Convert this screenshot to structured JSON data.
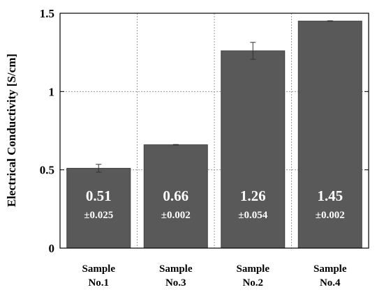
{
  "chart_data": {
    "type": "bar",
    "ylabel": "Electrical Conductivity [S/cm]",
    "xlabel": "",
    "ylim": [
      0,
      1.5
    ],
    "yticks": [
      0,
      0.5,
      1,
      1.5
    ],
    "ytick_labels": [
      "0",
      "0.5",
      "1",
      "1.5"
    ],
    "grid": true,
    "categories": [
      [
        "Sample",
        "No.1"
      ],
      [
        "Sample",
        "No.3"
      ],
      [
        "Sample",
        "No.2"
      ],
      [
        "Sample",
        "No.4"
      ]
    ],
    "values": [
      0.51,
      0.66,
      1.26,
      1.45
    ],
    "errors": [
      0.025,
      0.002,
      0.054,
      0.002
    ],
    "value_labels": [
      "0.51",
      "0.66",
      "1.26",
      "1.45"
    ],
    "error_labels": [
      "±0.025",
      "±0.002",
      "±0.054",
      "±0.002"
    ],
    "bar_color": "#595959",
    "label_color": "#ffffff",
    "grid_color": "#9a9a9a",
    "axis_color": "#000000"
  }
}
